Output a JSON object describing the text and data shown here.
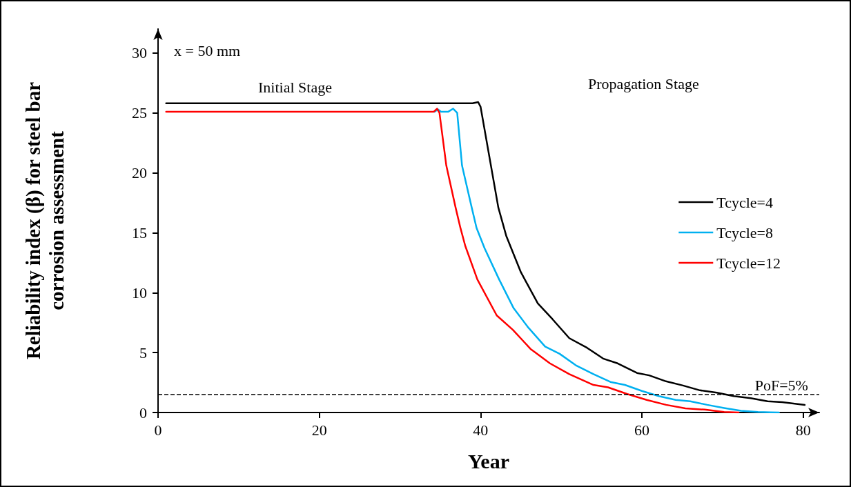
{
  "chart_data": {
    "type": "line",
    "xlabel": "Year",
    "ylabel": "Reliability index (β) for steel bar\ncorrosion assessment",
    "xlim": [
      0,
      82
    ],
    "xticks": [
      0,
      20,
      40,
      60,
      80
    ],
    "ylim": [
      0,
      32
    ],
    "yticks": [
      0,
      5,
      10,
      15,
      20,
      25,
      30
    ],
    "grid": false,
    "legend": "right",
    "marker": "none",
    "line_style": "solid",
    "annotations": [
      "x = 50 mm",
      "Initial Stage",
      "Propagation Stage",
      {
        "text": "PoF=5%",
        "x": 77,
        "y": 1.5
      }
    ],
    "ref_lines": [
      {
        "axis": "y",
        "value": 1.5,
        "color": "#000000",
        "line_style": "dashed"
      }
    ],
    "series": [
      {
        "name": "Tcycle=4",
        "color": "#000000",
        "x": [
          1,
          39,
          39.7,
          40,
          42.2,
          43.2,
          45,
          47.1,
          48.9,
          51,
          53.2,
          55.2,
          57,
          59.4,
          60.9,
          63,
          65.1,
          67.2,
          69.3,
          71.4,
          73.5,
          75.6,
          77.4,
          80.2
        ],
        "values": [
          25.8,
          25.8,
          25.9,
          25.5,
          17.1,
          14.7,
          11.7,
          9.1,
          7.8,
          6.2,
          5.4,
          4.5,
          4.1,
          3.3,
          3.1,
          2.6,
          2.25,
          1.85,
          1.66,
          1.37,
          1.2,
          0.94,
          0.86,
          0.63
        ]
      },
      {
        "name": "Tcycle=8",
        "color": "#00b0f0",
        "x": [
          34.3,
          34.7,
          35.1,
          36,
          36.6,
          37.1,
          37.7,
          38.9,
          39.5,
          40.5,
          42.3,
          44.1,
          45.9,
          48,
          49.8,
          51.9,
          54,
          56.1,
          57.9,
          60,
          62.1,
          64.2,
          66,
          68.1,
          70.2,
          72.3,
          74.4,
          75.9,
          77
        ],
        "values": [
          25.1,
          25.3,
          25.1,
          25.1,
          25.35,
          25,
          20.6,
          17.1,
          15.4,
          13.7,
          11.1,
          8.7,
          7.1,
          5.5,
          4.9,
          3.9,
          3.2,
          2.55,
          2.3,
          1.8,
          1.37,
          1.05,
          0.94,
          0.64,
          0.38,
          0.14,
          0.04,
          0.02,
          0
        ]
      },
      {
        "name": "Tcycle=12",
        "color": "#ff0000",
        "x": [
          1,
          34.2,
          34.6,
          34.9,
          35.75,
          36.9,
          37.5,
          38.1,
          39.6,
          42,
          44,
          46.2,
          48.6,
          51,
          54,
          55.8,
          58.2,
          60.6,
          63,
          65.4,
          67.8,
          70.2,
          72
        ],
        "values": [
          25.1,
          25.1,
          25.35,
          25,
          20.6,
          17.1,
          15.4,
          13.9,
          11.1,
          8.1,
          6.9,
          5.3,
          4.1,
          3.2,
          2.3,
          2.1,
          1.54,
          1.05,
          0.64,
          0.34,
          0.24,
          0.04,
          0
        ]
      }
    ]
  }
}
